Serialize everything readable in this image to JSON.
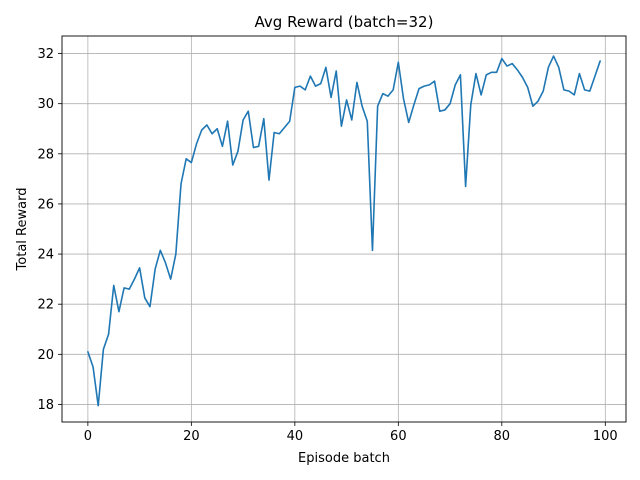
{
  "chart_data": {
    "type": "line",
    "title": "Avg Reward (batch=32)",
    "xlabel": "Episode batch",
    "ylabel": "Total Reward",
    "xlim": [
      -5,
      104
    ],
    "ylim": [
      17.3,
      32.7
    ],
    "xticks": [
      0,
      20,
      40,
      60,
      80,
      100
    ],
    "yticks": [
      18,
      20,
      22,
      24,
      26,
      28,
      30,
      32
    ],
    "grid": true,
    "series": [
      {
        "color": "#1f77b4",
        "x": [
          0,
          1,
          2,
          3,
          4,
          5,
          6,
          7,
          8,
          9,
          10,
          11,
          12,
          13,
          14,
          15,
          16,
          17,
          18,
          19,
          20,
          21,
          22,
          23,
          24,
          25,
          26,
          27,
          28,
          29,
          30,
          31,
          32,
          33,
          34,
          35,
          36,
          37,
          38,
          39,
          40,
          41,
          42,
          43,
          44,
          45,
          46,
          47,
          48,
          49,
          50,
          51,
          52,
          53,
          54,
          55,
          56,
          57,
          58,
          59,
          60,
          61,
          62,
          63,
          64,
          65,
          66,
          67,
          68,
          69,
          70,
          71,
          72,
          73,
          74,
          75,
          76,
          77,
          78,
          79,
          80,
          81,
          82,
          83,
          84,
          85,
          86,
          87,
          88,
          89,
          90,
          91,
          92,
          93,
          94,
          95,
          96,
          97,
          98,
          99
        ],
        "y": [
          20.1,
          19.5,
          17.95,
          20.2,
          20.8,
          22.75,
          21.7,
          22.65,
          22.6,
          23.0,
          23.45,
          22.25,
          21.9,
          23.4,
          24.15,
          23.65,
          23.0,
          24.0,
          26.8,
          27.8,
          27.65,
          28.4,
          28.95,
          29.15,
          28.8,
          29.0,
          28.3,
          29.3,
          27.55,
          28.1,
          29.35,
          29.7,
          28.25,
          28.3,
          29.4,
          26.95,
          28.85,
          28.8,
          29.05,
          29.3,
          30.65,
          30.7,
          30.55,
          31.1,
          30.7,
          30.8,
          31.45,
          30.25,
          31.3,
          29.1,
          30.15,
          29.35,
          30.85,
          29.9,
          29.3,
          24.15,
          29.9,
          30.4,
          30.3,
          30.55,
          31.65,
          30.2,
          29.25,
          29.95,
          30.6,
          30.7,
          30.75,
          30.9,
          29.7,
          29.75,
          30.0,
          30.75,
          31.15,
          26.7,
          29.95,
          31.2,
          30.35,
          31.15,
          31.25,
          31.25,
          31.8,
          31.5,
          31.6,
          31.35,
          31.05,
          30.65,
          29.9,
          30.1,
          30.5,
          31.45,
          31.9,
          31.45,
          30.55,
          30.5,
          30.35,
          31.2,
          30.55,
          30.5,
          31.1,
          31.7
        ]
      }
    ]
  }
}
